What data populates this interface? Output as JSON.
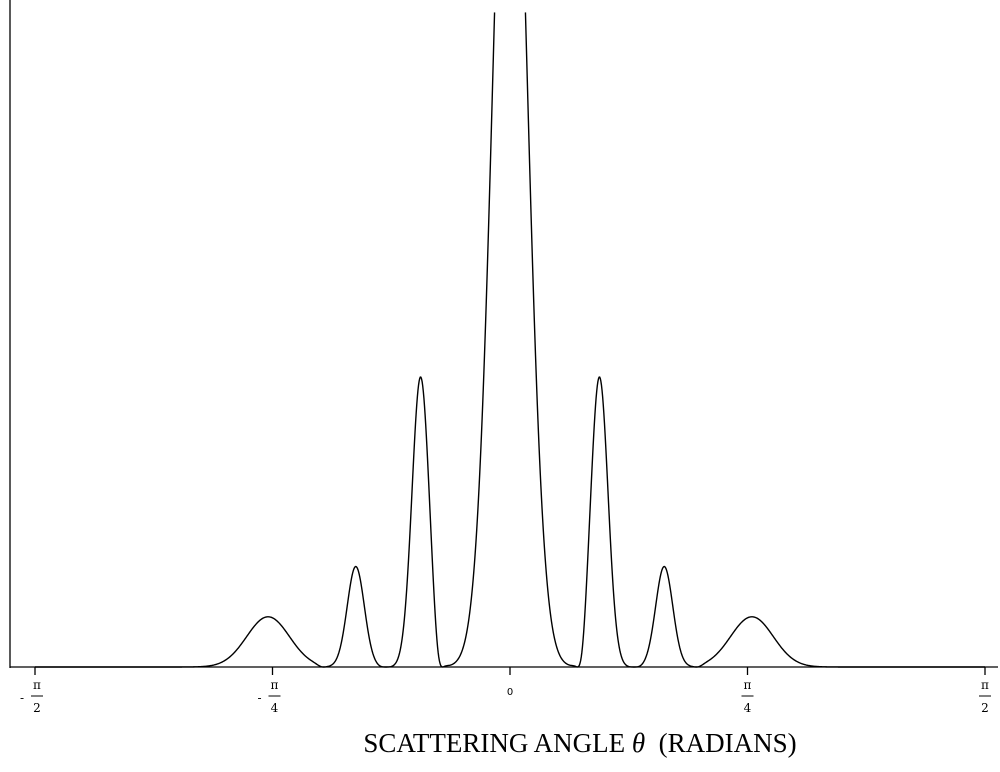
{
  "chart_data": {
    "type": "line",
    "xlabel": "SCATTERING ANGLE θ (RADIANS)",
    "xlabel_parts": {
      "before": "SCATTERING ANGLE ",
      "symbol": "θ",
      "after": "  (RADIANS)"
    },
    "xlim": [
      -1.5708,
      1.5708
    ],
    "ylim": [
      0,
      1
    ],
    "grid": false,
    "y_tick_labels": false,
    "x_ticks": [
      {
        "value": -1.5708,
        "sign": "-",
        "num": "π",
        "den": "2"
      },
      {
        "value": -0.7854,
        "sign": "-",
        "num": "π",
        "den": "4"
      },
      {
        "value": 0,
        "label": "0"
      },
      {
        "value": 0.7854,
        "sign": "",
        "num": "π",
        "den": "4"
      },
      {
        "value": 1.5708,
        "sign": "",
        "num": "π",
        "den": "2"
      }
    ],
    "series": [
      {
        "x": [
          -1.5708,
          -1.4923,
          -1.4137,
          -1.3352,
          -1.2566,
          -1.1781,
          -1.0996,
          -1.021,
          -0.9425,
          -0.8639,
          -0.7854,
          -0.7069,
          -0.6283,
          -0.5498,
          -0.4712,
          -0.3927,
          -0.3142,
          -0.2356,
          -0.1571,
          -0.0785,
          0.0,
          0.0785,
          0.1571,
          0.2356,
          0.3142,
          0.3927,
          0.4712,
          0.5498,
          0.6283,
          0.7069,
          0.7854,
          0.8639,
          0.9425,
          1.021,
          1.0996,
          1.1781,
          1.2566,
          1.3352,
          1.4137,
          1.4923,
          1.5708
        ],
        "y": [
          0.0,
          0.0,
          0.001,
          0.009,
          0.027,
          0.049,
          0.072,
          0.086,
          0.078,
          0.041,
          0.002,
          0.069,
          0.148,
          0.101,
          0.001,
          0.121,
          0.433,
          0.364,
          0.002,
          0.98,
          1.0,
          0.98,
          0.002,
          0.364,
          0.433,
          0.121,
          0.001,
          0.101,
          0.148,
          0.069,
          0.002,
          0.041,
          0.078,
          0.086,
          0.072,
          0.049,
          0.027,
          0.009,
          0.001,
          0.0,
          0.0
        ]
      }
    ]
  }
}
